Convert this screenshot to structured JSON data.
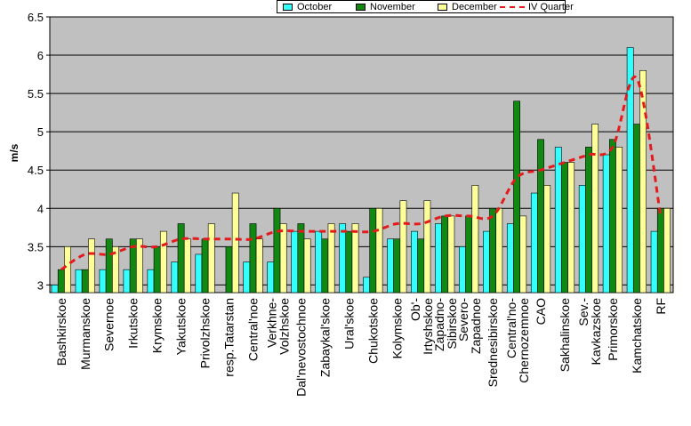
{
  "chart_data": {
    "type": "bar",
    "ylabel": "m/s",
    "xlabel": "",
    "ylim": [
      2.9,
      6.5
    ],
    "yticks": [
      "3",
      "3.5",
      "4",
      "4.5",
      "5",
      "5.5",
      "6",
      "6.5"
    ],
    "grid": true,
    "legend_position": "top",
    "categories": [
      "Bashkirskoe",
      "Murmanskoe",
      "Severnoe",
      "Irkutskoe",
      "Krymskoe",
      "Yakutskoe",
      "Privolzhskoe",
      "resp.Tatarstan",
      "Central'noe",
      "Verkhne-Volzhskoe",
      "Dal'nevostochnoe",
      "Zabaykal'skoe",
      "Ural'skoe",
      "Chukotskoe",
      "Kolymskoe",
      "Ob'-Irtyshskoe",
      "Zapadno-Sibirskoe",
      "Severo-Zapadnoe",
      "Srednesibirskoe",
      "Central'no-Chernozemnoe",
      "CAO",
      "Sakhalinskoe",
      "Sev.-Kavkazskoe",
      "Primorskoe",
      "Kamchatskoe",
      "RF"
    ],
    "tick_labels": [
      [
        "Bashkirskoe"
      ],
      [
        "Murmanskoe"
      ],
      [
        "Severnoe"
      ],
      [
        "Irkutskoe"
      ],
      [
        "Krymskoe"
      ],
      [
        "Yakutskoe"
      ],
      [
        "Privolzhskoe"
      ],
      [
        "resp.Tatarstan"
      ],
      [
        "Central'noe"
      ],
      [
        "Verkhne-",
        "Volzhskoe"
      ],
      [
        "Dal'nevostochnoe"
      ],
      [
        "Zabaykal'skoe"
      ],
      [
        "Ural'skoe"
      ],
      [
        "Chukotskoe"
      ],
      [
        "Kolymskoe"
      ],
      [
        "Ob'-",
        "Irtyshskoe"
      ],
      [
        "Zapadno-",
        "Sibirskoe"
      ],
      [
        "Severo-",
        "Zapadnoe"
      ],
      [
        "Srednesibirskoe"
      ],
      [
        "Central'no-",
        "Chernozemnoe"
      ],
      [
        "CAO"
      ],
      [
        "Sakhalinskoe"
      ],
      [
        "Sev.-",
        "Kavkazskoe"
      ],
      [
        "Primorskoe"
      ],
      [
        "Kamchatskoe"
      ],
      [
        "RF"
      ]
    ],
    "series": [
      {
        "name": "October",
        "type": "bar",
        "color": "#33ffff",
        "values": [
          3.0,
          3.2,
          3.2,
          3.2,
          3.2,
          3.3,
          3.4,
          2.9,
          3.3,
          3.3,
          3.7,
          3.7,
          3.8,
          3.1,
          3.6,
          3.7,
          3.8,
          3.5,
          3.7,
          3.8,
          4.2,
          4.8,
          4.3,
          4.7,
          6.1,
          3.7
        ]
      },
      {
        "name": "November",
        "type": "bar",
        "color": "#118811",
        "values": [
          3.2,
          3.2,
          3.6,
          3.6,
          3.5,
          3.8,
          3.6,
          3.5,
          3.8,
          4.0,
          3.8,
          3.6,
          3.7,
          4.0,
          3.6,
          3.6,
          3.9,
          3.9,
          4.0,
          5.4,
          4.9,
          4.6,
          4.8,
          4.9,
          5.1,
          4.0
        ]
      },
      {
        "name": "December",
        "type": "bar",
        "color": "#ffff99",
        "values": [
          3.5,
          3.6,
          3.5,
          3.6,
          3.7,
          3.6,
          3.8,
          4.2,
          3.6,
          3.8,
          3.6,
          3.8,
          3.8,
          4.0,
          4.1,
          4.1,
          3.9,
          4.3,
          4.0,
          3.9,
          4.3,
          4.6,
          5.1,
          4.8,
          5.8,
          4.0
        ]
      },
      {
        "name": "IV Quarter",
        "type": "line",
        "color": "#e41a1c",
        "values": [
          3.2,
          3.4,
          3.4,
          3.5,
          3.5,
          3.6,
          3.6,
          3.6,
          3.6,
          3.7,
          3.7,
          3.7,
          3.7,
          3.7,
          3.8,
          3.8,
          3.9,
          3.9,
          3.9,
          4.4,
          4.5,
          4.6,
          4.7,
          4.8,
          5.7,
          3.9
        ]
      }
    ],
    "colors": {
      "plot_background": "#c0c0c0",
      "grid": "#000000"
    }
  }
}
